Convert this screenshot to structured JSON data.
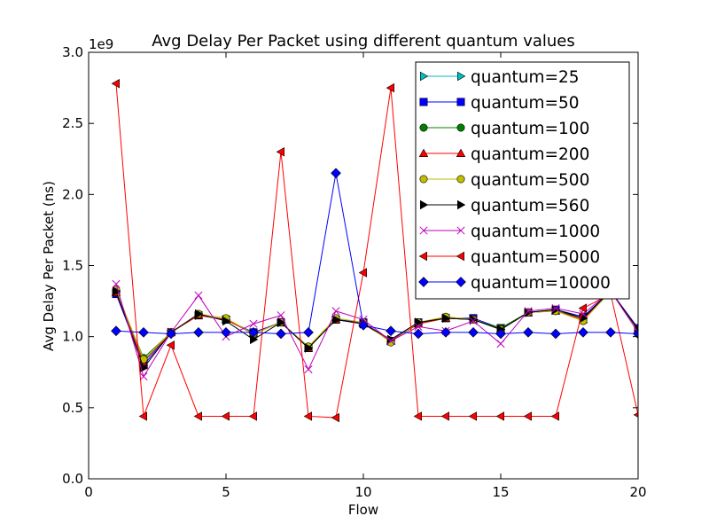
{
  "chart_data": {
    "type": "line",
    "title": "Avg Delay Per Packet using different quantum values",
    "xlabel": "Flow",
    "ylabel": "Avg Delay Per Packet (ns)",
    "y_scale_label": "1e9",
    "xlim": [
      0,
      20
    ],
    "ylim": [
      0.0,
      3.0
    ],
    "x_ticks": [
      "0",
      "5",
      "10",
      "15",
      "20"
    ],
    "y_ticks": [
      "0.0",
      "0.5",
      "1.0",
      "1.5",
      "2.0",
      "2.5",
      "3.0"
    ],
    "grid": false,
    "legend_position": "upper-right",
    "x": [
      1,
      2,
      3,
      4,
      5,
      6,
      7,
      8,
      9,
      10,
      11,
      12,
      13,
      14,
      15,
      16,
      17,
      18,
      19,
      20
    ],
    "series": [
      {
        "name": "quantum=25",
        "color": "#00bfbf",
        "marker": "tri-right",
        "values": [
          1.32,
          0.83,
          1.03,
          1.15,
          1.12,
          1.02,
          1.1,
          0.92,
          1.12,
          1.09,
          0.97,
          1.09,
          1.13,
          1.12,
          1.05,
          1.17,
          1.19,
          1.13,
          1.32,
          1.05
        ]
      },
      {
        "name": "quantum=50",
        "color": "#0000ff",
        "marker": "square",
        "values": [
          1.3,
          0.8,
          1.03,
          1.15,
          1.12,
          1.03,
          1.1,
          0.92,
          1.12,
          1.1,
          0.97,
          1.1,
          1.13,
          1.13,
          1.06,
          1.17,
          1.19,
          1.14,
          1.32,
          1.06
        ]
      },
      {
        "name": "quantum=100",
        "color": "#008000",
        "marker": "circle",
        "values": [
          1.31,
          0.85,
          1.03,
          1.15,
          1.12,
          1.02,
          1.1,
          0.93,
          1.12,
          1.09,
          0.97,
          1.09,
          1.13,
          1.12,
          1.06,
          1.17,
          1.18,
          1.13,
          1.32,
          1.05
        ]
      },
      {
        "name": "quantum=200",
        "color": "#ff0000",
        "marker": "triangle-up",
        "values": [
          1.31,
          0.82,
          1.03,
          1.15,
          1.12,
          1.02,
          1.1,
          0.92,
          1.12,
          1.09,
          0.97,
          1.09,
          1.13,
          1.12,
          1.05,
          1.17,
          1.18,
          1.12,
          1.32,
          1.05
        ]
      },
      {
        "name": "quantum=500",
        "color": "#bfbf00",
        "marker": "circle",
        "values": [
          1.33,
          0.84,
          1.03,
          1.16,
          1.13,
          1.02,
          1.1,
          0.93,
          1.13,
          1.1,
          0.96,
          1.1,
          1.14,
          1.12,
          1.05,
          1.17,
          1.18,
          1.11,
          1.32,
          1.04
        ]
      },
      {
        "name": "quantum=560",
        "color": "#000000",
        "marker": "tri-right",
        "values": [
          1.32,
          0.78,
          1.03,
          1.16,
          1.11,
          0.98,
          1.1,
          0.92,
          1.12,
          1.09,
          0.98,
          1.1,
          1.13,
          1.12,
          1.05,
          1.17,
          1.19,
          1.13,
          1.32,
          1.05
        ]
      },
      {
        "name": "quantum=1000",
        "color": "#bf00bf",
        "marker": "x",
        "values": [
          1.37,
          0.72,
          1.03,
          1.29,
          1.0,
          1.09,
          1.15,
          0.77,
          1.18,
          1.12,
          0.97,
          1.07,
          1.04,
          1.11,
          0.95,
          1.18,
          1.2,
          1.16,
          1.32,
          1.03
        ]
      },
      {
        "name": "quantum=5000",
        "color": "#ff0000",
        "marker": "tri-left",
        "values": [
          2.78,
          0.44,
          0.94,
          0.44,
          0.44,
          0.44,
          2.3,
          0.44,
          0.43,
          1.45,
          2.75,
          0.44,
          0.44,
          0.44,
          0.44,
          0.44,
          0.44,
          1.2,
          1.3,
          0.45
        ]
      },
      {
        "name": "quantum=10000",
        "color": "#0000ff",
        "marker": "diamond",
        "values": [
          1.04,
          1.03,
          1.02,
          1.03,
          1.03,
          1.03,
          1.02,
          1.03,
          2.15,
          1.08,
          1.04,
          1.02,
          1.03,
          1.03,
          1.02,
          1.03,
          1.02,
          1.03,
          1.03,
          1.02
        ]
      }
    ]
  }
}
